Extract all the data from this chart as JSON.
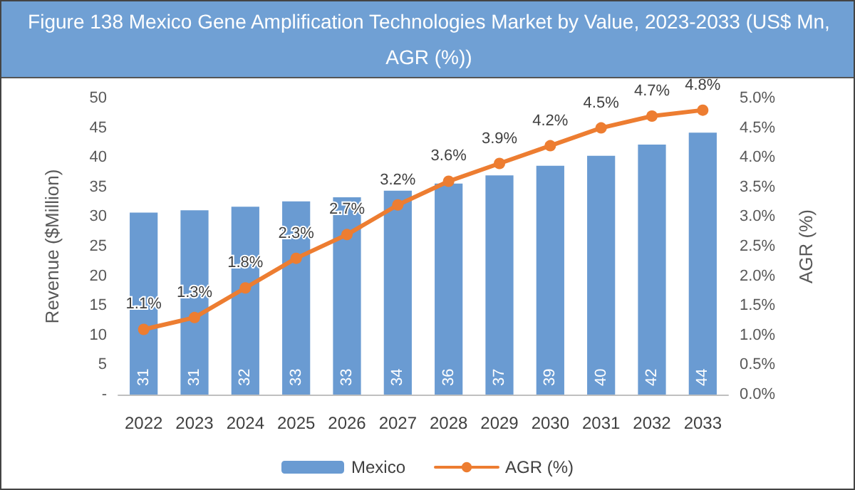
{
  "chart_data": {
    "type": "bar",
    "title": "Figure 138 Mexico Gene Amplification Technologies Market by Value, 2023-2033 (US$ Mn, AGR (%))",
    "categories": [
      "2022",
      "2023",
      "2024",
      "2025",
      "2026",
      "2027",
      "2028",
      "2029",
      "2030",
      "2031",
      "2032",
      "2033"
    ],
    "series": [
      {
        "name": "Mexico",
        "color": "#6a9bd2",
        "values": [
          30.7,
          31.1,
          31.7,
          32.6,
          33.3,
          34.4,
          35.6,
          37.0,
          38.6,
          40.3,
          42.2,
          44.2
        ],
        "value_labels": [
          "31",
          "31",
          "32",
          "33",
          "33",
          "34",
          "36",
          "37",
          "39",
          "40",
          "42",
          "44"
        ]
      },
      {
        "name": "AGR (%)",
        "type": "line",
        "axis": "y2",
        "color": "#ed7d31",
        "values": [
          1.1,
          1.3,
          1.8,
          2.3,
          2.7,
          3.2,
          3.6,
          3.9,
          4.2,
          4.5,
          4.7,
          4.8
        ],
        "value_labels": [
          "1.1%",
          "1.3%",
          "1.8%",
          "2.3%",
          "2.7%",
          "3.2%",
          "3.6%",
          "3.9%",
          "4.2%",
          "4.5%",
          "4.7%",
          "4.8%"
        ]
      }
    ],
    "ylabel": "Revenue ($Million)",
    "y2label": "AGR (%)",
    "ylim": [
      0,
      50
    ],
    "yticks": [
      {
        "value": 0,
        "label": "-"
      },
      5,
      10,
      15,
      20,
      25,
      30,
      35,
      40,
      45,
      50
    ],
    "y2lim": [
      0,
      5
    ],
    "y2ticks": [
      {
        "value": 0,
        "label": "0.0%"
      },
      {
        "value": 0.5,
        "label": "0.5%"
      },
      {
        "value": 1,
        "label": "1.0%"
      },
      {
        "value": 1.5,
        "label": "1.5%"
      },
      {
        "value": 2,
        "label": "2.0%"
      },
      {
        "value": 2.5,
        "label": "2.5%"
      },
      {
        "value": 3,
        "label": "3.0%"
      },
      {
        "value": 3.5,
        "label": "3.5%"
      },
      {
        "value": 4,
        "label": "4.0%"
      },
      {
        "value": 4.5,
        "label": "4.5%"
      },
      {
        "value": 5,
        "label": "5.0%"
      }
    ],
    "grid": false,
    "legend": "bottom",
    "marker": "circle"
  }
}
